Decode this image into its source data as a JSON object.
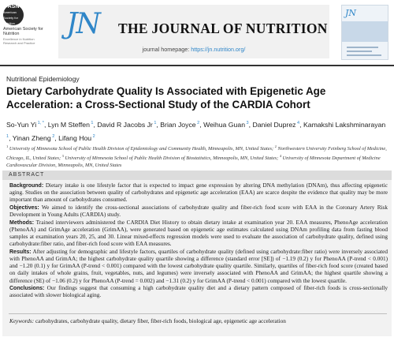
{
  "header": {
    "society_logo_text": "ASN",
    "society_logo_sub": "American Society for Nutrition",
    "society_name": "American Society for Nutrition",
    "society_tagline": "Excellence in Nutrition Research and Practice",
    "journal_mark": "JN",
    "journal_title": "THE JOURNAL OF NUTRITION",
    "homepage_prefix": "journal homepage: ",
    "homepage_url": "https://jn.nutrition.org/"
  },
  "article": {
    "section": "Nutritional Epidemiology",
    "title": "Dietary Carbohydrate Quality Is Associated with Epigenetic Age Acceleration: a Cross-Sectional Study of the CARDIA Cohort",
    "authors": [
      {
        "name": "So-Yun Yi",
        "sup": "1, *"
      },
      {
        "name": "Lyn M Steffen",
        "sup": "1"
      },
      {
        "name": "David R Jacobs Jr",
        "sup": "1"
      },
      {
        "name": "Brian Joyce",
        "sup": "2"
      },
      {
        "name": "Weihua Guan",
        "sup": "3"
      },
      {
        "name": "Daniel Duprez",
        "sup": "4"
      },
      {
        "name": "Kamakshi Lakshminarayan",
        "sup": "1"
      },
      {
        "name": "Yinan Zheng",
        "sup": "2"
      },
      {
        "name": "Lifang Hou",
        "sup": "2"
      }
    ],
    "affiliations": [
      {
        "num": "1",
        "text": "University of Minnesota School of Public Health Division of Epidemiology and Community Health, Minneapolis, MN, United States;"
      },
      {
        "num": "2",
        "text": "Northwestern University Feinberg School of Medicine, Chicago, IL, United States;"
      },
      {
        "num": "3",
        "text": "University of Minnesota School of Public Health Division of Biostatistics, Minneapolis, MN, United States;"
      },
      {
        "num": "4",
        "text": "University of Minnesota Department of Medicine Cardiovascular Division, Minneapolis, MN, United States"
      }
    ]
  },
  "abstract": {
    "heading": "ABSTRACT",
    "background_label": "Background:",
    "background": "Dietary intake is one lifestyle factor that is expected to impact gene expression by altering DNA methylation (DNAm), thus affecting epigenetic aging. Studies on the association between quality of carbohydrates and epigenetic age acceleration (EAA) are scarce despite the evidence that quality may be more important than amount of carbohydrates consumed.",
    "objectives_label": "Objectives:",
    "objectives": "We aimed to identify the cross-sectional associations of carbohydrate quality and fiber-rich food score with EAA in the Coronary Artery Risk Development in Young Adults (CARDIA) study.",
    "methods_label": "Methods:",
    "methods": "Trained interviewers administered the CARDIA Diet History to obtain dietary intake at examination year 20. EAA measures, PhenoAge acceleration (PhenoAA) and GrimAge acceleration (GrimAA), were generated based on epigenetic age estimates calculated using DNAm profiling data from fasting blood samples at examination years 20, 25, and 30. Linear mixed-effects regression models were used to evaluate the association of carbohydrate quality, defined using carbohydrate:fiber ratio, and fiber-rich food score with EAA measures.",
    "results_label": "Results:",
    "results": "After adjusting for demographic and lifestyle factors, quartiles of carbohydrate quality (defined using carbohydrate:fiber ratio) were inversely associated with PhenoAA and GrimAA; the highest carbohydrate quality quartile showing a difference (standard error [SE]) of −1.19 (0.2) y for PhenoAA (P-trend < 0.001) and −1.20 (0.1) y for GrimAA (P-trend < 0.001) compared with the lowest carbohydrate quality quartile. Similarly, quartiles of fiber-rich food score (created based on daily intakes of whole grains, fruit, vegetables, nuts, and legumes) were inversely associated with PhenoAA and GrimAA; the highest quartile showing a difference (SE) of −1.06 (0.2) y for PhenoAA (P-trend = 0.002) and −1.31 (0.2) y for GrimAA (P-trend < 0.001) compared with the lowest quartile.",
    "conclusions_label": "Conclusions:",
    "conclusions": "Our findings suggest that consuming a high carbohydrate quality diet and a dietary pattern composed of fiber-rich foods is cross-sectionally associated with slower biological aging.",
    "keywords_label": "Keywords:",
    "keywords": "carbohydrates, carbohydrate quality, dietary fiber, fiber-rich foods, biological age, epigenetic age acceleration"
  },
  "colors": {
    "accent": "#2f86c8",
    "abstract_bg": "#f2f2f2",
    "abstract_head_bg": "#dcdcdc"
  }
}
